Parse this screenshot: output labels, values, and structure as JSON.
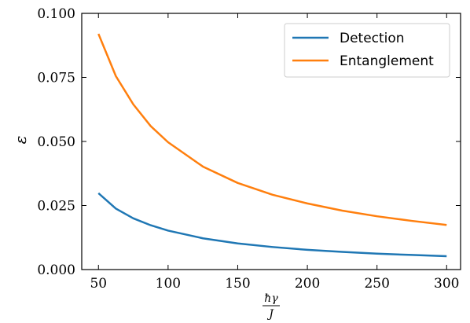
{
  "chart_data": {
    "type": "line",
    "xlabel_numerator": "ħγ",
    "xlabel_denominator": "J",
    "ylabel": "ε",
    "xlim": [
      38,
      310
    ],
    "ylim": [
      0.0,
      0.1
    ],
    "x_ticks": [
      50,
      100,
      150,
      200,
      250,
      300
    ],
    "x_tick_labels": [
      "50",
      "100",
      "150",
      "200",
      "250",
      "300"
    ],
    "y_ticks": [
      0.0,
      0.025,
      0.05,
      0.075,
      0.1
    ],
    "y_tick_labels": [
      "0.000",
      "0.025",
      "0.050",
      "0.075",
      "0.100"
    ],
    "x": [
      50,
      62.5,
      75,
      87.5,
      100,
      125,
      150,
      175,
      200,
      225,
      250,
      275,
      300
    ],
    "series": [
      {
        "name": "Detection",
        "color": "#1f77b4",
        "values": [
          0.0298,
          0.0238,
          0.02,
          0.0173,
          0.0152,
          0.0122,
          0.0102,
          0.0088,
          0.0077,
          0.0069,
          0.0062,
          0.0057,
          0.0052
        ]
      },
      {
        "name": "Entanglement",
        "color": "#ff7f0e",
        "values": [
          0.092,
          0.0755,
          0.0645,
          0.056,
          0.0497,
          0.0402,
          0.0338,
          0.0292,
          0.0258,
          0.023,
          0.0208,
          0.019,
          0.0174
        ]
      }
    ],
    "legend_position": "top-right",
    "grid": false
  }
}
